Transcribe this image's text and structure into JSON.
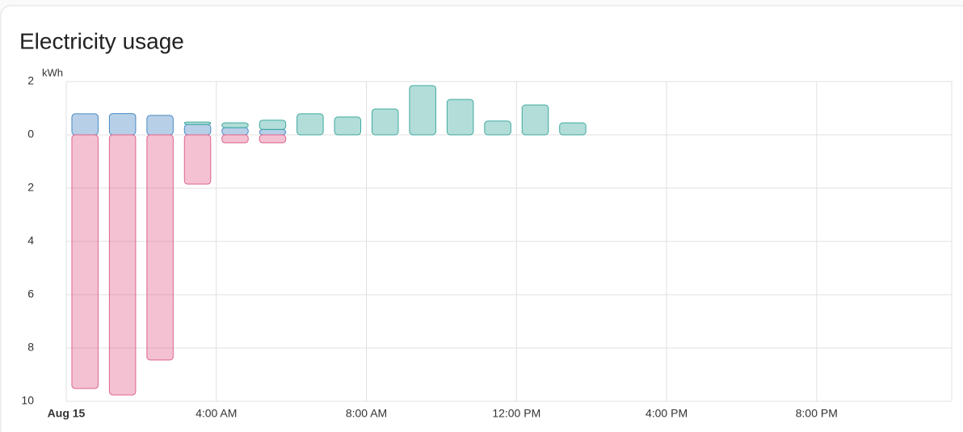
{
  "chart_data": {
    "type": "bar",
    "title": "Electricity usage",
    "y_label": "kWh",
    "x": [
      0,
      1,
      2,
      3,
      4,
      5,
      6,
      7,
      8,
      9,
      10,
      11,
      12,
      13
    ],
    "xlim": [
      0,
      23.6
    ],
    "xticks": [
      {
        "value": 0,
        "label": "Aug 15"
      },
      {
        "value": 4,
        "label": "4:00 AM"
      },
      {
        "value": 8,
        "label": "8:00 AM"
      },
      {
        "value": 12,
        "label": "12:00 PM"
      },
      {
        "value": 16,
        "label": "4:00 PM"
      },
      {
        "value": 20,
        "label": "8:00 PM"
      }
    ],
    "ylim": [
      -10,
      2
    ],
    "yticks": [
      2,
      0,
      {
        "value": -2,
        "label": "2"
      },
      {
        "value": -4,
        "label": "4"
      },
      {
        "value": -6,
        "label": "6"
      },
      {
        "value": -8,
        "label": "8"
      },
      {
        "value": -10,
        "label": "10"
      }
    ],
    "grid": true,
    "series": [
      {
        "color": "#4a8ac4",
        "values": [
          0.79,
          0.8,
          0.73,
          0.39,
          0.27,
          0.2,
          0,
          0,
          0,
          0,
          0,
          0,
          0,
          0
        ]
      },
      {
        "color": "#3faa9f",
        "values": [
          0,
          0,
          0,
          0.09,
          0.18,
          0.35,
          0.79,
          0.67,
          0.97,
          1.85,
          1.33,
          0.52,
          1.12,
          0.45
        ]
      },
      {
        "color": "#e0648f",
        "values": [
          -9.52,
          -9.76,
          -8.45,
          -1.85,
          -0.3,
          -0.3,
          0,
          0,
          0,
          0,
          0,
          0,
          0,
          0
        ]
      }
    ]
  }
}
